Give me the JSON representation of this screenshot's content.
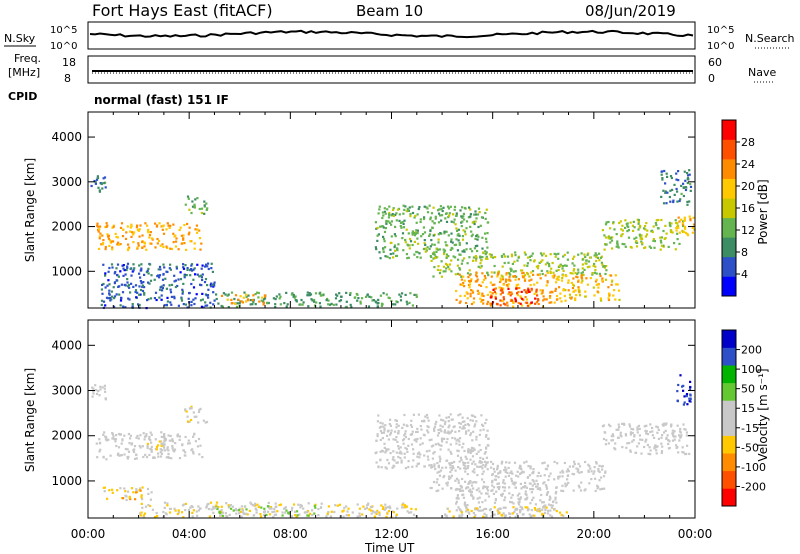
{
  "header": {
    "title": "Fort Hays East (fitACF)",
    "beam": "Beam 10",
    "date": "08/Jun/2019"
  },
  "top_panel": {
    "left_label": "N.Sky",
    "left_ticks": [
      "10^5",
      "10^0"
    ],
    "right_label": "N.Search",
    "right_ticks": [
      "10^5",
      "10^0"
    ]
  },
  "freq_panel": {
    "left_label_1": "Freq.",
    "left_label_2": "[MHz]",
    "left_ticks": [
      "18",
      "8"
    ],
    "right_label": "Nave",
    "right_ticks": [
      "60",
      "0"
    ],
    "cpid_label": "CPID",
    "cpid_value": "normal (fast) 151 IF"
  },
  "x_axis": {
    "label": "Time UT",
    "ticks": [
      "00:00",
      "04:00",
      "08:00",
      "12:00",
      "16:00",
      "20:00",
      "00:00"
    ]
  },
  "colors": {
    "power_scale": [
      "#0000ff",
      "#2d50c8",
      "#3c8c64",
      "#64b450",
      "#c8c800",
      "#ffc800",
      "#ff8c00",
      "#ff5000",
      "#ff0000"
    ],
    "velocity_scale": [
      "#ff0000",
      "#ff5000",
      "#ff8c00",
      "#ffc800",
      "#c8c8c8",
      "#c8c8c8",
      "#64c832",
      "#00b400",
      "#2d50c8",
      "#0000c8"
    ]
  },
  "chart_data": [
    {
      "type": "heatmap",
      "name_printed": "",
      "ylabel": "Slant Range [km]",
      "xlabel": "",
      "xlim_hours": [
        0,
        24
      ],
      "ylim": [
        180,
        4560
      ],
      "yticks": [
        "4000",
        "3000",
        "2000",
        "1000"
      ],
      "colorbar_label": "Power [dB]",
      "colorbar_ticks": [
        "28",
        "24",
        "20",
        "16",
        "12",
        "8",
        "4"
      ],
      "colorbar_range": [
        0,
        32
      ],
      "regions": [
        {
          "t0": 0.1,
          "t1": 0.7,
          "r0": 2800,
          "r1": 3150,
          "value": 8
        },
        {
          "t0": 0.3,
          "t1": 4.5,
          "r0": 1500,
          "r1": 2100,
          "value": 22
        },
        {
          "t0": 3.8,
          "t1": 4.7,
          "r0": 2300,
          "r1": 2700,
          "value": 12
        },
        {
          "t0": 0.5,
          "t1": 5.0,
          "r0": 200,
          "r1": 1200,
          "value": 6
        },
        {
          "t0": 5.0,
          "t1": 13.0,
          "r0": 220,
          "r1": 550,
          "value": 10
        },
        {
          "t0": 5.2,
          "t1": 7.0,
          "r0": 280,
          "r1": 500,
          "value": 22
        },
        {
          "t0": 11.3,
          "t1": 15.8,
          "r0": 1300,
          "r1": 2500,
          "value": 12
        },
        {
          "t0": 13.5,
          "t1": 20.5,
          "r0": 900,
          "r1": 1450,
          "value": 14
        },
        {
          "t0": 14.5,
          "t1": 18.5,
          "r0": 220,
          "r1": 1000,
          "value": 22
        },
        {
          "t0": 15.8,
          "t1": 17.8,
          "r0": 250,
          "r1": 650,
          "value": 28
        },
        {
          "t0": 18.5,
          "t1": 21.0,
          "r0": 350,
          "r1": 950,
          "value": 20
        },
        {
          "t0": 20.3,
          "t1": 23.5,
          "r0": 1500,
          "r1": 2200,
          "value": 14
        },
        {
          "t0": 22.6,
          "t1": 23.8,
          "r0": 2500,
          "r1": 3300,
          "value": 8
        },
        {
          "t0": 23.0,
          "t1": 23.95,
          "r0": 1800,
          "r1": 2300,
          "value": 20
        }
      ]
    },
    {
      "type": "heatmap",
      "name_printed": "",
      "ylabel": "Slant Range [km]",
      "xlabel": "Time UT",
      "xlim_hours": [
        0,
        24
      ],
      "ylim": [
        180,
        4560
      ],
      "yticks": [
        "4000",
        "3000",
        "2000",
        "1000"
      ],
      "colorbar_label": "Velocity [m s⁻¹]",
      "colorbar_ticks": [
        "200",
        "100",
        "50",
        "15",
        "-15",
        "-50",
        "-100",
        "-200"
      ],
      "colorbar_range": [
        -250,
        250
      ],
      "regions": [
        {
          "t0": 0.1,
          "t1": 0.7,
          "r0": 2800,
          "r1": 3150,
          "value": 0
        },
        {
          "t0": 0.3,
          "t1": 4.5,
          "r0": 1500,
          "r1": 2100,
          "value": 0
        },
        {
          "t0": 2.3,
          "t1": 3.2,
          "r0": 1700,
          "r1": 2000,
          "value": -40
        },
        {
          "t0": 3.8,
          "t1": 4.7,
          "r0": 2300,
          "r1": 2700,
          "value": -30
        },
        {
          "t0": 0.5,
          "t1": 2.5,
          "r0": 600,
          "r1": 900,
          "value": -60
        },
        {
          "t0": 2.0,
          "t1": 13.0,
          "r0": 220,
          "r1": 550,
          "value": -40
        },
        {
          "t0": 5.0,
          "t1": 9.0,
          "r0": 250,
          "r1": 480,
          "value": 40
        },
        {
          "t0": 11.3,
          "t1": 15.8,
          "r0": 1300,
          "r1": 2500,
          "value": 0
        },
        {
          "t0": 13.5,
          "t1": 20.5,
          "r0": 800,
          "r1": 1450,
          "value": 0
        },
        {
          "t0": 14.5,
          "t1": 18.5,
          "r0": 220,
          "r1": 900,
          "value": 0
        },
        {
          "t0": 14.0,
          "t1": 19.0,
          "r0": 220,
          "r1": 450,
          "value": -40
        },
        {
          "t0": 20.3,
          "t1": 23.8,
          "r0": 1600,
          "r1": 2300,
          "value": 0
        },
        {
          "t0": 23.2,
          "t1": 23.8,
          "r0": 2700,
          "r1": 3400,
          "value": 200
        }
      ]
    }
  ]
}
